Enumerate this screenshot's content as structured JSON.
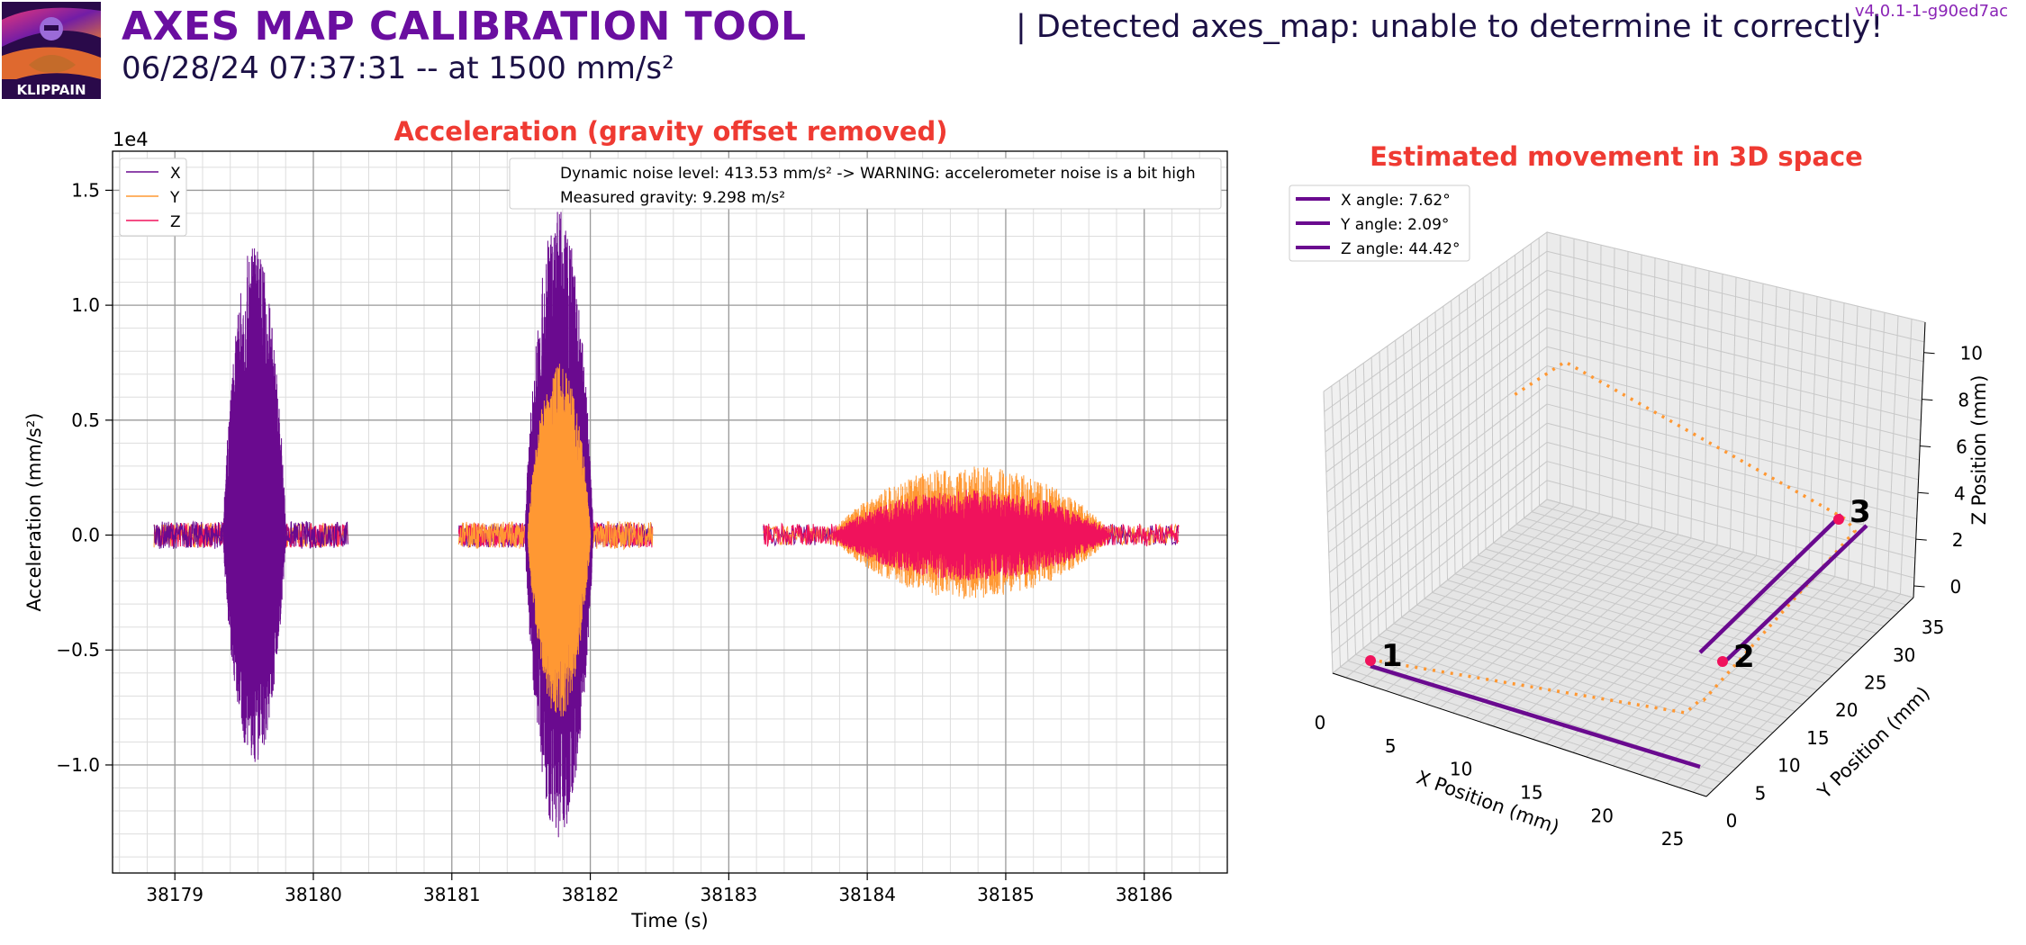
{
  "header": {
    "title": "AXES MAP CALIBRATION TOOL",
    "subtitle": "06/28/24 07:37:31 -- at 1500 mm/s²",
    "detection": "| Detected axes_map: unable to determine it correctly!",
    "version": "v4.0.1-1-g90ed7ac",
    "logo_text": "KLIPPAIN"
  },
  "colors": {
    "x": "#6a0a8f",
    "y": "#ff9833",
    "z": "#f0125c",
    "title": "#ef3a32",
    "header": "#6a0ea0"
  },
  "chart_data": [
    {
      "type": "line",
      "title": "Acceleration (gravity offset removed)",
      "xlabel": "Time (s)",
      "ylabel": "Acceleration (mm/s²)",
      "y_offset_label": "1e4",
      "xlim": [
        38178.55,
        38186.6
      ],
      "ylim": [
        -1.47,
        1.67
      ],
      "xticks": [
        38179,
        38180,
        38181,
        38182,
        38183,
        38184,
        38185,
        38186
      ],
      "yticks": [
        -1.0,
        -0.5,
        0.0,
        0.5,
        1.0,
        1.5
      ],
      "ytick_labels": [
        "−1.0",
        "−0.5",
        "0.0",
        "0.5",
        "1.0",
        "1.5"
      ],
      "grid": true,
      "legend": {
        "placement": "top-left",
        "entries": [
          "X",
          "Y",
          "Z"
        ]
      },
      "annotation": [
        "Dynamic noise level: 413.53 mm/s² -> WARNING: accelerometer noise is a bit high",
        "Measured gravity: 9.298 m/s²"
      ],
      "segments": [
        {
          "axis": "x",
          "start": 38178.85,
          "end": 38180.25,
          "burst_start": 38179.35,
          "burst_end": 38179.8,
          "burst_amplitude": [
            1.27,
            -1.0
          ],
          "idle_amplitude": 0.06
        },
        {
          "axis": "y",
          "start": 38181.05,
          "end": 38182.45,
          "burst_start": 38181.55,
          "burst_end": 38182.0,
          "burst_amplitude": [
            1.4,
            -1.32
          ],
          "idle_amplitude": 0.06
        },
        {
          "axis": "z",
          "start": 38183.25,
          "end": 38186.25,
          "burst_start": 38183.75,
          "burst_end": 38185.75,
          "burst_amplitude": [
            0.3,
            -0.3
          ],
          "idle_amplitude": 0.05
        }
      ]
    },
    {
      "type": "line3d",
      "title": "Estimated movement in 3D space",
      "xlabel": "X Position (mm)",
      "ylabel": "Y Position (mm)",
      "zlabel": "Z Position (mm)",
      "xticks": [
        0,
        5,
        10,
        15,
        20,
        25
      ],
      "yticks": [
        0,
        5,
        10,
        15,
        20,
        25,
        30,
        35
      ],
      "zticks": [
        0,
        2,
        4,
        6,
        8,
        10
      ],
      "legend": {
        "placement": "top-left",
        "entries": [
          "X angle: 7.62°",
          "Y angle: 2.09°",
          "Z angle: 44.42°"
        ]
      },
      "points": [
        {
          "label": "1",
          "x": 0,
          "y": 0,
          "z": 0
        },
        {
          "label": "2",
          "x": 26,
          "y": 3,
          "z": 0
        },
        {
          "label": "3",
          "x": 26,
          "y": 34,
          "z": 0.5
        }
      ]
    }
  ]
}
